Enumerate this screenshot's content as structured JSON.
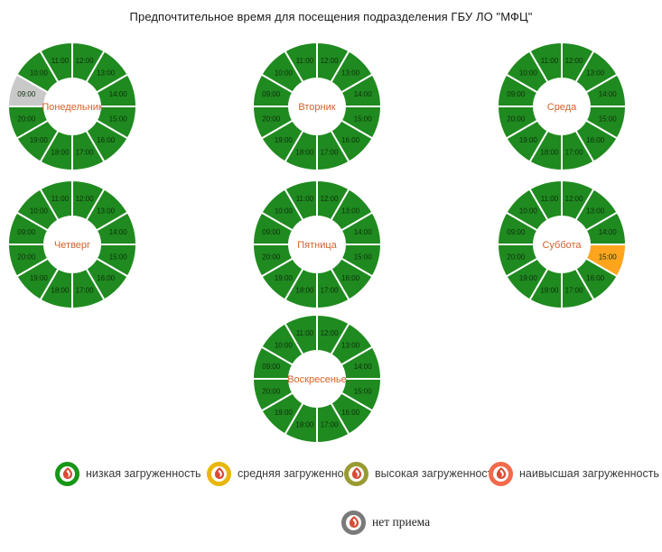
{
  "chart_data": {
    "type": "pie",
    "variant": "donut-clock-grid",
    "title": "Предпочтительное время для посещения подразделения ГБУ ЛО \"МФЦ\"",
    "hour_order_clockwise_from_top": [
      "12:00",
      "13:00",
      "14:00",
      "15:00",
      "16:00",
      "17:00",
      "18:00",
      "19:00",
      "20:00",
      "09:00",
      "10:00",
      "11:00"
    ],
    "status_colors": {
      "low": "#1f8a1f",
      "medium": "#ffa51d",
      "no_reception": "#c9c9c9"
    },
    "label_colors": {
      "day_name": "#d2622b",
      "time": "#0f2e0f"
    },
    "days": [
      {
        "label": "Понедельник",
        "row": 0,
        "col": 0,
        "statuses": {
          "09:00": "no_reception",
          "10:00": "low",
          "11:00": "low",
          "12:00": "low",
          "13:00": "low",
          "14:00": "low",
          "15:00": "low",
          "16:00": "low",
          "17:00": "low",
          "18:00": "low",
          "19:00": "low",
          "20:00": "low"
        }
      },
      {
        "label": "Вторник",
        "row": 0,
        "col": 1,
        "statuses": {
          "09:00": "low",
          "10:00": "low",
          "11:00": "low",
          "12:00": "low",
          "13:00": "low",
          "14:00": "low",
          "15:00": "low",
          "16:00": "low",
          "17:00": "low",
          "18:00": "low",
          "19:00": "low",
          "20:00": "low"
        }
      },
      {
        "label": "Среда",
        "row": 0,
        "col": 2,
        "statuses": {
          "09:00": "low",
          "10:00": "low",
          "11:00": "low",
          "12:00": "low",
          "13:00": "low",
          "14:00": "low",
          "15:00": "low",
          "16:00": "low",
          "17:00": "low",
          "18:00": "low",
          "19:00": "low",
          "20:00": "low"
        }
      },
      {
        "label": "Четверг",
        "row": 1,
        "col": 0,
        "statuses": {
          "09:00": "low",
          "10:00": "low",
          "11:00": "low",
          "12:00": "low",
          "13:00": "low",
          "14:00": "low",
          "15:00": "low",
          "16:00": "low",
          "17:00": "low",
          "18:00": "low",
          "19:00": "low",
          "20:00": "low"
        }
      },
      {
        "label": "Пятница",
        "row": 1,
        "col": 1,
        "statuses": {
          "09:00": "low",
          "10:00": "low",
          "11:00": "low",
          "12:00": "low",
          "13:00": "low",
          "14:00": "low",
          "15:00": "low",
          "16:00": "low",
          "17:00": "low",
          "18:00": "low",
          "19:00": "low",
          "20:00": "low"
        }
      },
      {
        "label": "Суббота",
        "row": 1,
        "col": 2,
        "statuses": {
          "09:00": "low",
          "10:00": "low",
          "11:00": "low",
          "12:00": "low",
          "13:00": "low",
          "14:00": "low",
          "15:00": "medium",
          "16:00": "low",
          "17:00": "low",
          "18:00": "low",
          "19:00": "low",
          "20:00": "low"
        }
      },
      {
        "label": "Воскресенье",
        "row": 2,
        "col": 1,
        "statuses": {
          "09:00": "low",
          "10:00": "low",
          "11:00": "low",
          "12:00": "low",
          "13:00": "low",
          "14:00": "low",
          "15:00": "low",
          "16:00": "low",
          "17:00": "low",
          "18:00": "low",
          "19:00": "low",
          "20:00": "low"
        }
      }
    ],
    "legend": [
      {
        "id": "low",
        "label": "низкая загруженность",
        "color": "#189618"
      },
      {
        "id": "medium",
        "label": "средняя загруженность",
        "color": "#e8b70c"
      },
      {
        "id": "high",
        "label": "высокая загруженность",
        "color": "#9a9a33"
      },
      {
        "id": "highest",
        "label": "наивысшая загруженность",
        "color": "#f26a4a"
      },
      {
        "id": "no_reception",
        "label": "нет приема",
        "color": "#7a7a7a"
      }
    ],
    "legend_position": "bottom",
    "grid": "3 columns x 3 rows, Sunday centered in last row"
  }
}
